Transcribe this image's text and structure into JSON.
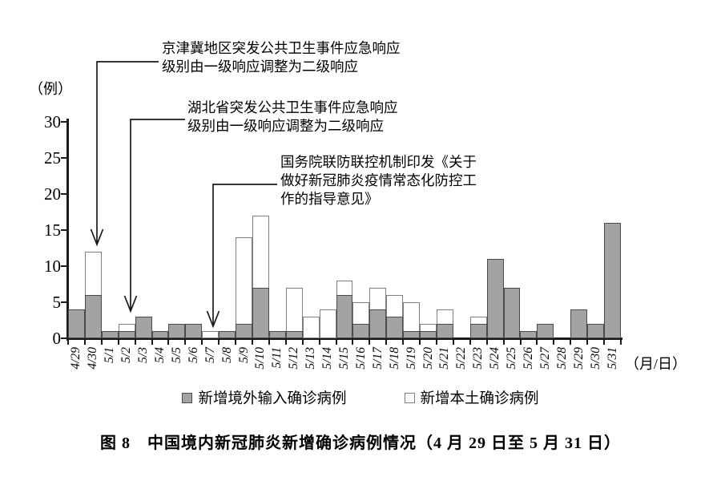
{
  "colors": {
    "bar_imported": "#a3a3a3",
    "bar_local": "#ffffff",
    "border_imported": "#4a4a4a",
    "border_local": "#7f7f7f",
    "axis": "#1a1a1a"
  },
  "chart_data": {
    "type": "bar",
    "stacked": true,
    "grid": false,
    "legend_position": "bottom",
    "title": "图 8　中国境内新冠肺炎新增确诊病例情况（4 月 29 日至 5 月 31 日）",
    "y_unit_label": "（例）",
    "x_unit_label": "（月/日）",
    "ylim": [
      0,
      30
    ],
    "yticks": [
      0,
      5,
      10,
      15,
      20,
      25,
      30
    ],
    "categories": [
      "4/29",
      "4/30",
      "5/1",
      "5/2",
      "5/3",
      "5/4",
      "5/5",
      "5/6",
      "5/7",
      "5/8",
      "5/9",
      "5/10",
      "5/11",
      "5/12",
      "5/13",
      "5/14",
      "5/15",
      "5/16",
      "5/17",
      "5/18",
      "5/19",
      "5/20",
      "5/21",
      "5/22",
      "5/23",
      "5/24",
      "5/25",
      "5/26",
      "5/27",
      "5/28",
      "5/29",
      "5/30",
      "5/31"
    ],
    "series": [
      {
        "name": "新增境外输入确诊病例",
        "color": "#a3a3a3",
        "values": [
          4,
          6,
          1,
          1,
          3,
          1,
          2,
          2,
          0,
          1,
          2,
          7,
          1,
          1,
          0,
          0,
          6,
          2,
          4,
          3,
          1,
          1,
          2,
          0,
          2,
          11,
          7,
          1,
          2,
          0,
          4,
          2,
          16
        ]
      },
      {
        "name": "新增本土确诊病例",
        "color": "#ffffff",
        "values": [
          0,
          6,
          0,
          1,
          0,
          0,
          0,
          0,
          1,
          0,
          12,
          10,
          0,
          6,
          3,
          4,
          2,
          3,
          3,
          3,
          4,
          1,
          2,
          0,
          1,
          0,
          0,
          0,
          0,
          0,
          0,
          0,
          0
        ]
      }
    ],
    "annotations": [
      {
        "target": "4/30",
        "text_lines": [
          "京津冀地区突发公共卫生事件应急响应",
          "级别由一级响应调整为二级响应"
        ]
      },
      {
        "target": "5/2",
        "text_lines": [
          "湖北省突发公共卫生事件应急响应",
          "级别由一级响应调整为二级响应"
        ]
      },
      {
        "target": "5/7",
        "text_lines": [
          "国务院联防联控机制印发《关于",
          "做好新冠肺炎疫情常态化防控工",
          "作的指导意见》"
        ]
      }
    ]
  }
}
